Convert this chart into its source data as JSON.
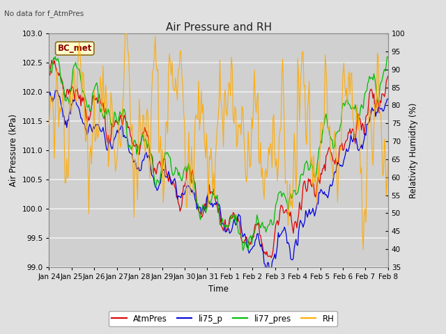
{
  "title": "Air Pressure and RH",
  "subtitle": "No data for f_AtmPres",
  "xlabel": "Time",
  "ylabel_left": "Air Pressure (kPa)",
  "ylabel_right": "Relativity Humidity (%)",
  "box_label": "BC_met",
  "ylim_left": [
    99.0,
    103.0
  ],
  "ylim_right": [
    35,
    100
  ],
  "yticks_left": [
    99.0,
    99.5,
    100.0,
    100.5,
    101.0,
    101.5,
    102.0,
    102.5,
    103.0
  ],
  "yticks_right": [
    35,
    40,
    45,
    50,
    55,
    60,
    65,
    70,
    75,
    80,
    85,
    90,
    95,
    100
  ],
  "xtick_labels": [
    "Jan 24",
    "Jan 25",
    "Jan 26",
    "Jan 27",
    "Jan 28",
    "Jan 29",
    "Jan 30",
    "Jan 31",
    "Feb 1",
    "Feb 2",
    "Feb 3",
    "Feb 4",
    "Feb 5",
    "Feb 6",
    "Feb 7",
    "Feb 8"
  ],
  "colors": {
    "AtmPres": "#dd0000",
    "li75_p": "#0000dd",
    "li77_pres": "#00bb00",
    "RH": "#ffaa00"
  },
  "background_color": "#e0e0e0",
  "plot_bg_color": "#d0d0d0",
  "grid_color": "#f0f0f0",
  "figsize": [
    6.4,
    4.8
  ],
  "dpi": 100
}
